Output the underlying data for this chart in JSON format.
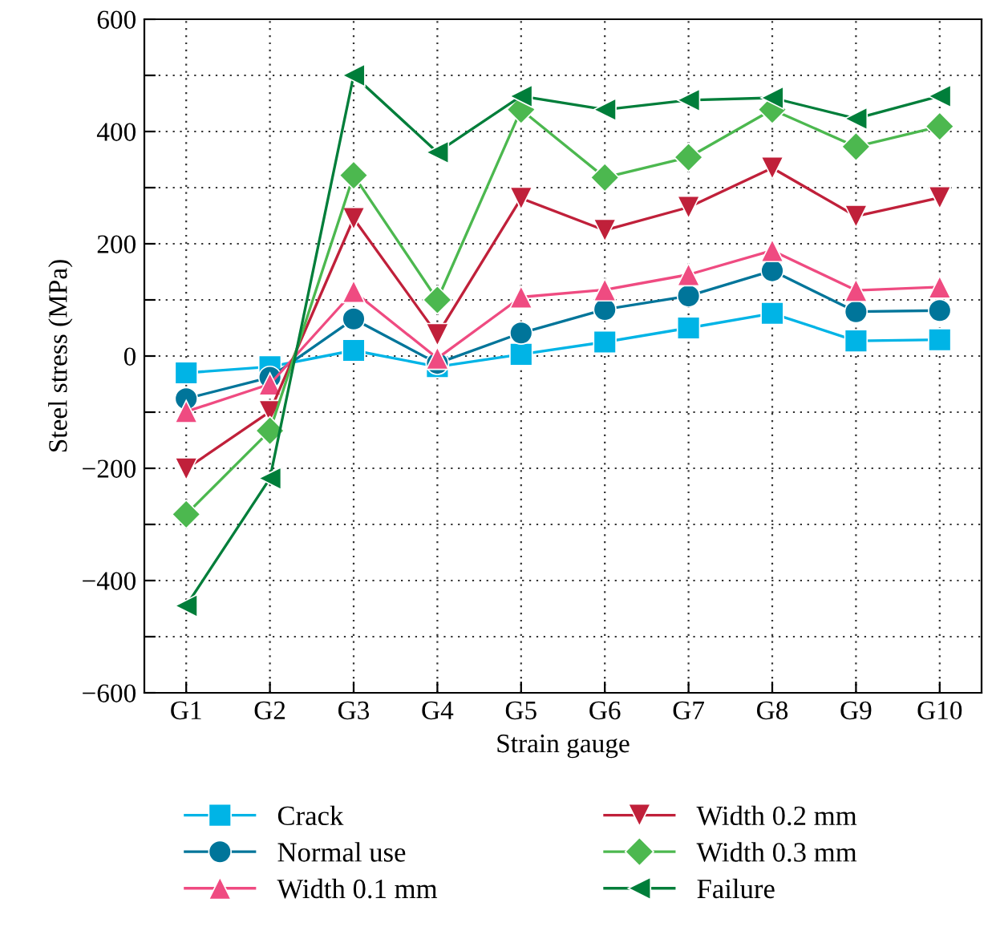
{
  "chart_data": {
    "type": "line",
    "xlabel": "Strain gauge",
    "ylabel": "Steel stress (MPa)",
    "categories": [
      "G1",
      "G2",
      "G3",
      "G4",
      "G5",
      "G6",
      "G7",
      "G8",
      "G9",
      "G10"
    ],
    "series": [
      {
        "name": "Crack",
        "color": "#00b4e6",
        "marker": "square",
        "values": [
          -30,
          -19,
          10,
          -19,
          3,
          25,
          50,
          76,
          27,
          29
        ]
      },
      {
        "name": "Normal use",
        "color": "#00759a",
        "marker": "circle",
        "values": [
          -76,
          -38,
          66,
          -13,
          41,
          83,
          107,
          152,
          79,
          81
        ]
      },
      {
        "name": "Width 0.1 mm",
        "color": "#ef4b81",
        "marker": "triangle",
        "values": [
          -99,
          -50,
          115,
          -4,
          105,
          118,
          145,
          188,
          117,
          123
        ]
      },
      {
        "name": "Width 0.2 mm",
        "color": "#c0203a",
        "marker": "triangle-down",
        "values": [
          -201,
          -99,
          245,
          38,
          281,
          224,
          265,
          335,
          249,
          282
        ]
      },
      {
        "name": "Width 0.3 mm",
        "color": "#4cb84f",
        "marker": "diamond",
        "values": [
          -282,
          -133,
          322,
          100,
          439,
          318,
          354,
          439,
          373,
          409
        ]
      },
      {
        "name": "Failure",
        "color": "#007e3a",
        "marker": "triangle-left",
        "values": [
          -445,
          -218,
          500,
          363,
          463,
          439,
          456,
          460,
          423,
          463
        ]
      }
    ],
    "ylim": [
      -600,
      600
    ],
    "yticks": [
      -600,
      {
        "value": -500,
        "label": null
      },
      -400,
      {
        "value": -300,
        "label": null
      },
      -200,
      {
        "value": -100,
        "label": null
      },
      0,
      {
        "value": 100,
        "label": null
      },
      200,
      {
        "value": 300,
        "label": null
      },
      400,
      {
        "value": 500,
        "label": null
      },
      600
    ],
    "grid": true,
    "legend": "bottom",
    "line_style": "solid"
  }
}
